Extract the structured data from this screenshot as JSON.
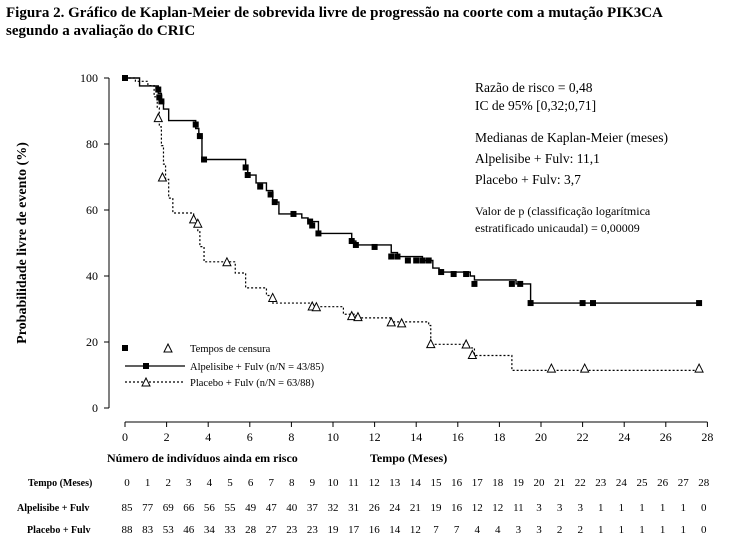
{
  "figure": {
    "title_line1": "Figura 2. Gráfico de Kaplan-Meier de sobrevida livre de progressão na coorte com a mutação  PIK3CA",
    "title_line2": "segundo a avaliação do CRIC"
  },
  "chart_data": {
    "type": "line",
    "step": true,
    "ylabel": "Probabilidade livre de evento (%)",
    "xlabel": "Tempo (Meses)",
    "xlim": [
      0,
      28
    ],
    "ylim": [
      0,
      100
    ],
    "xticks": [
      0,
      2,
      4,
      6,
      8,
      10,
      12,
      14,
      16,
      18,
      20,
      22,
      24,
      26,
      28
    ],
    "yticks": [
      0,
      20,
      40,
      60,
      80,
      100
    ],
    "grid": false,
    "annotations": {
      "hazard_ratio": "Razão de risco = 0,48",
      "ci": "IC de 95% [0,32;0,71]",
      "medians_title": "Medianas de Kaplan-Meier (meses)",
      "median_alpelisib": "Alpelisibe + Fulv: 11,1",
      "median_placebo": "Placebo + Fulv: 3,7",
      "pvalue_line1": "Valor de p (classificação logarítmica",
      "pvalue_line2": "estratificado unicaudal) = 0,00009"
    },
    "legend": {
      "censor_label": "Tempos de censura",
      "position": "bottom-left"
    },
    "series": [
      {
        "name": "Alpelisibe + Fulv (n/N = 43/85)",
        "color": "#000000",
        "line": "solid",
        "marker": "square",
        "steps": [
          [
            0,
            100
          ],
          [
            0.7,
            97.6
          ],
          [
            1.6,
            95.3
          ],
          [
            1.75,
            92.9
          ],
          [
            1.85,
            90.6
          ],
          [
            2.1,
            87.1
          ],
          [
            3.4,
            84.7
          ],
          [
            3.55,
            82.4
          ],
          [
            3.7,
            75.3
          ],
          [
            5.8,
            72.9
          ],
          [
            5.9,
            70.6
          ],
          [
            6.3,
            68.2
          ],
          [
            6.8,
            65.9
          ],
          [
            7.1,
            62.4
          ],
          [
            7.4,
            58.8
          ],
          [
            8.5,
            57.6
          ],
          [
            8.8,
            56.5
          ],
          [
            9.3,
            52.9
          ],
          [
            10.9,
            50.6
          ],
          [
            11.1,
            49.4
          ],
          [
            12.8,
            47.1
          ],
          [
            13.1,
            45.9
          ],
          [
            14.3,
            44.7
          ],
          [
            14.8,
            42.4
          ],
          [
            15.1,
            41.2
          ],
          [
            16.6,
            40.0
          ],
          [
            16.8,
            38.8
          ],
          [
            18.8,
            37.6
          ],
          [
            19.5,
            31.8
          ],
          [
            27.6,
            31.8
          ]
        ],
        "censored": [
          [
            0,
            100
          ],
          [
            1.6,
            96.5
          ],
          [
            1.65,
            94.1
          ],
          [
            1.75,
            92.9
          ],
          [
            3.4,
            85.9
          ],
          [
            3.6,
            82.4
          ],
          [
            3.8,
            75.3
          ],
          [
            5.8,
            72.9
          ],
          [
            5.9,
            70.6
          ],
          [
            6.5,
            67.1
          ],
          [
            7.0,
            64.7
          ],
          [
            7.2,
            62.4
          ],
          [
            8.1,
            58.8
          ],
          [
            8.9,
            56.5
          ],
          [
            9.0,
            55.3
          ],
          [
            9.3,
            52.9
          ],
          [
            10.9,
            50.6
          ],
          [
            11.1,
            49.4
          ],
          [
            12.0,
            48.8
          ],
          [
            12.8,
            45.9
          ],
          [
            13.1,
            45.9
          ],
          [
            13.6,
            44.7
          ],
          [
            14.0,
            44.7
          ],
          [
            14.3,
            44.7
          ],
          [
            14.6,
            44.7
          ],
          [
            15.2,
            41.2
          ],
          [
            15.8,
            40.6
          ],
          [
            16.4,
            40.6
          ],
          [
            16.8,
            37.6
          ],
          [
            18.6,
            37.6
          ],
          [
            19.0,
            37.6
          ],
          [
            19.5,
            31.8
          ],
          [
            22.0,
            31.8
          ],
          [
            22.5,
            31.8
          ],
          [
            27.6,
            31.8
          ]
        ]
      },
      {
        "name": "Placebo + Fulv (n/N = 63/88)",
        "color": "#000000",
        "line": "dotted",
        "marker": "triangle",
        "steps": [
          [
            0,
            100
          ],
          [
            0.5,
            99.0
          ],
          [
            1.1,
            97.7
          ],
          [
            1.4,
            94.3
          ],
          [
            1.55,
            90.9
          ],
          [
            1.65,
            85.2
          ],
          [
            1.75,
            79.5
          ],
          [
            1.85,
            73.9
          ],
          [
            1.95,
            69.3
          ],
          [
            2.1,
            63.6
          ],
          [
            2.3,
            59.1
          ],
          [
            3.3,
            56.8
          ],
          [
            3.5,
            53.4
          ],
          [
            3.6,
            48.9
          ],
          [
            3.8,
            44.3
          ],
          [
            5.3,
            40.9
          ],
          [
            5.8,
            36.4
          ],
          [
            6.8,
            34.1
          ],
          [
            7.1,
            31.8
          ],
          [
            9.0,
            30.7
          ],
          [
            10.5,
            28.4
          ],
          [
            11.1,
            27.3
          ],
          [
            12.8,
            26.1
          ],
          [
            14.6,
            25.0
          ],
          [
            14.7,
            19.3
          ],
          [
            16.4,
            18.2
          ],
          [
            16.8,
            15.9
          ],
          [
            18.6,
            11.4
          ],
          [
            27.6,
            11.4
          ]
        ],
        "censored": [
          [
            1.6,
            88.0
          ],
          [
            1.8,
            70.0
          ],
          [
            3.3,
            57.3
          ],
          [
            3.5,
            56.0
          ],
          [
            4.9,
            44.3
          ],
          [
            7.1,
            33.5
          ],
          [
            9.0,
            30.9
          ],
          [
            9.2,
            30.7
          ],
          [
            10.9,
            28.0
          ],
          [
            11.2,
            27.7
          ],
          [
            12.8,
            26.1
          ],
          [
            13.3,
            25.8
          ],
          [
            14.7,
            19.5
          ],
          [
            16.4,
            19.4
          ],
          [
            16.7,
            16.2
          ],
          [
            20.5,
            12.1
          ],
          [
            22.1,
            12.1
          ],
          [
            27.6,
            12.1
          ]
        ]
      }
    ],
    "risk_table": {
      "title": "Número de indivíduos ainda em risco",
      "time_header": "Tempo (Meses)",
      "times": [
        "0",
        "1",
        "2",
        "3",
        "4",
        "5",
        "6",
        "7",
        "8",
        "9",
        "10",
        "11",
        "12",
        "13",
        "14",
        "15",
        "16",
        "17",
        "18",
        "19",
        "20",
        "21",
        "22",
        "23",
        "24",
        "25",
        "26",
        "27",
        "28"
      ],
      "rows": [
        {
          "label": "Alpelisibe + Fulv",
          "values": [
            "85",
            "77",
            "69",
            "66",
            "56",
            "55",
            "49",
            "47",
            "40",
            "37",
            "32",
            "31",
            "26",
            "24",
            "21",
            "19",
            "16",
            "12",
            "12",
            "11",
            "3",
            "3",
            "3",
            "1",
            "1",
            "1",
            "1",
            "1",
            "0"
          ]
        },
        {
          "label": "Placebo + Fulv",
          "values": [
            "88",
            "83",
            "53",
            "46",
            "34",
            "33",
            "28",
            "27",
            "23",
            "23",
            "19",
            "17",
            "16",
            "14",
            "12",
            "7",
            "7",
            "4",
            "4",
            "3",
            "3",
            "2",
            "2",
            "1",
            "1",
            "1",
            "1",
            "1",
            "0"
          ]
        }
      ]
    }
  }
}
